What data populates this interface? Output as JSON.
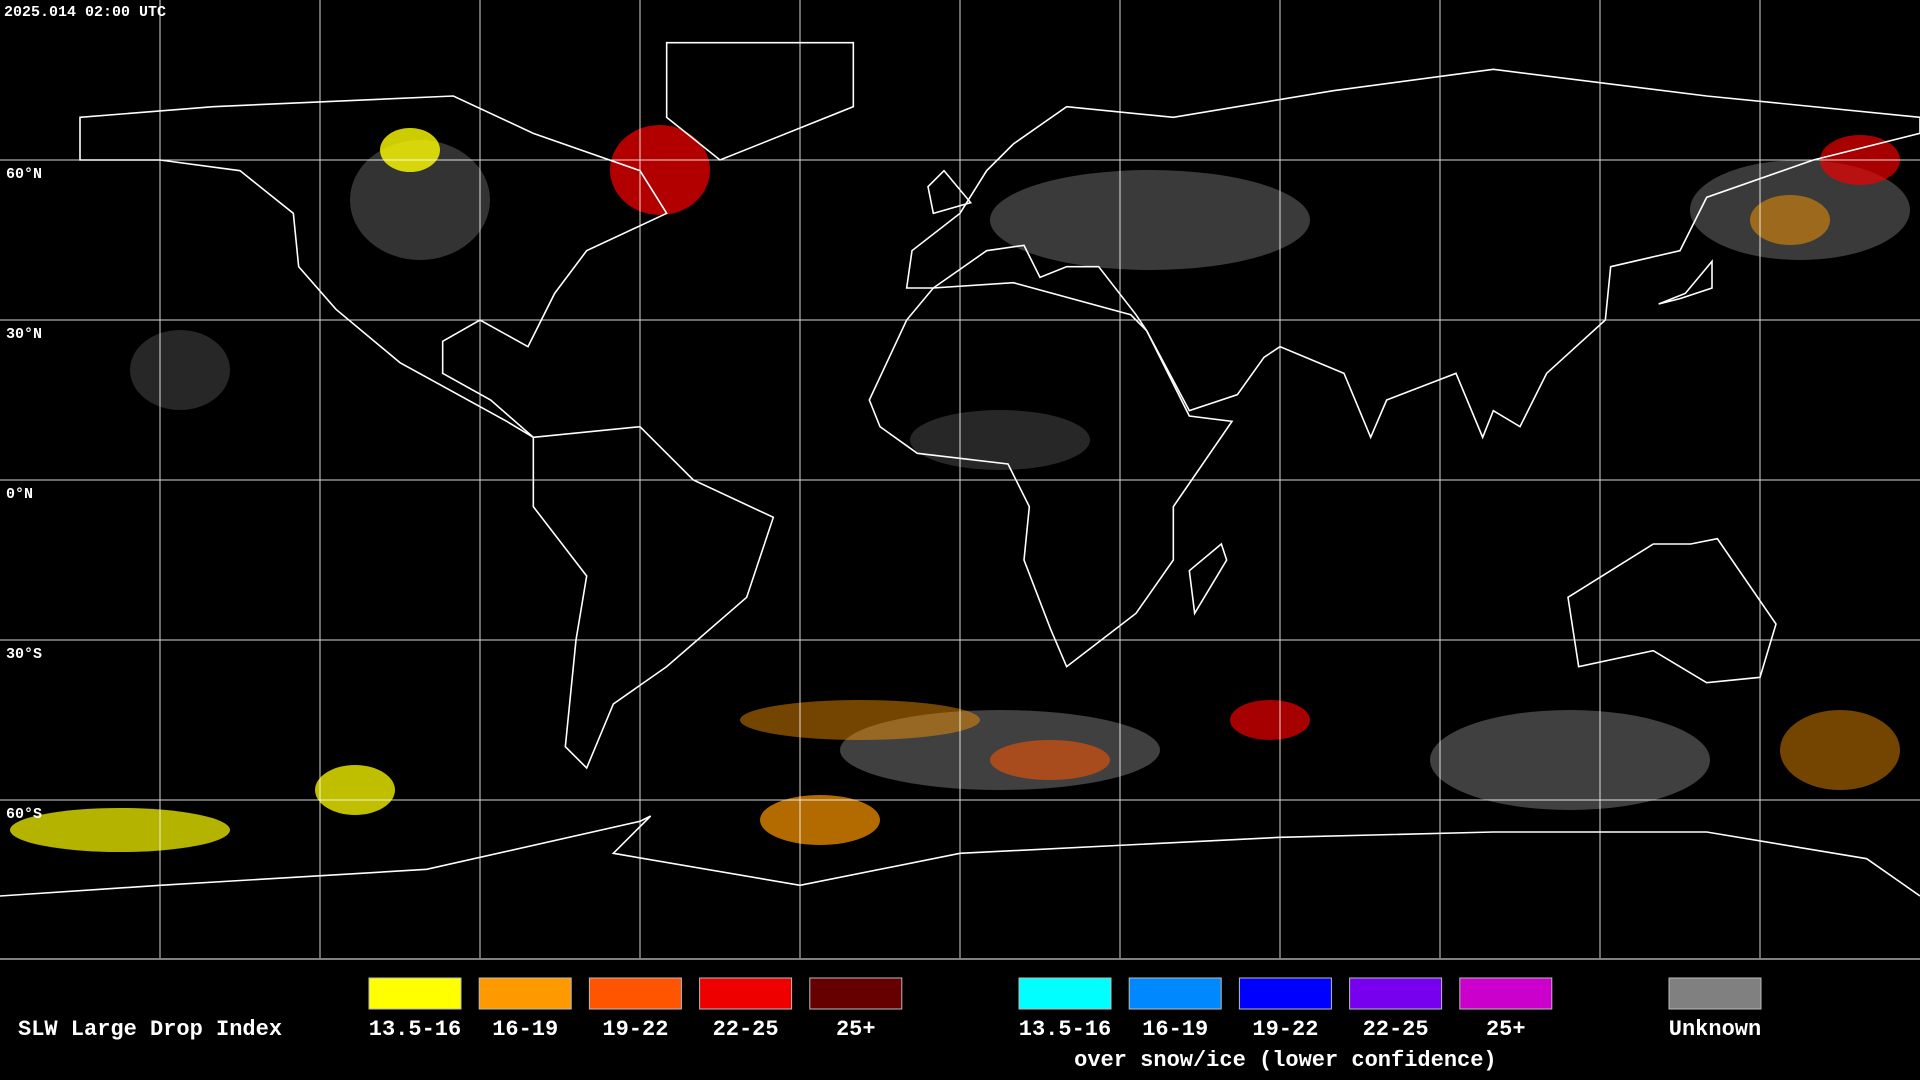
{
  "timestamp": "2025.014 02:00 UTC",
  "map": {
    "latitude_labels": [
      "60°N",
      "30°N",
      "0°N",
      "30°S",
      "60°S"
    ]
  },
  "legend": {
    "title": "SLW Large Drop Index",
    "groups": [
      {
        "items": [
          {
            "label": "13.5-16",
            "color": "#ffff00"
          },
          {
            "label": "16-19",
            "color": "#ff9900"
          },
          {
            "label": "19-22",
            "color": "#ff5500"
          },
          {
            "label": "22-25",
            "color": "#ee0000"
          },
          {
            "label": "25+",
            "color": "#660000"
          }
        ]
      },
      {
        "items": [
          {
            "label": "13.5-16",
            "color": "#00ffff"
          },
          {
            "label": "16-19",
            "color": "#0088ff"
          },
          {
            "label": "19-22",
            "color": "#0000ff"
          },
          {
            "label": "22-25",
            "color": "#7700ee"
          },
          {
            "label": "25+",
            "color": "#cc00cc"
          }
        ],
        "caption": "over snow/ice (lower confidence)"
      },
      {
        "items": [
          {
            "label": "Unknown",
            "color": "#808080"
          }
        ]
      }
    ]
  }
}
